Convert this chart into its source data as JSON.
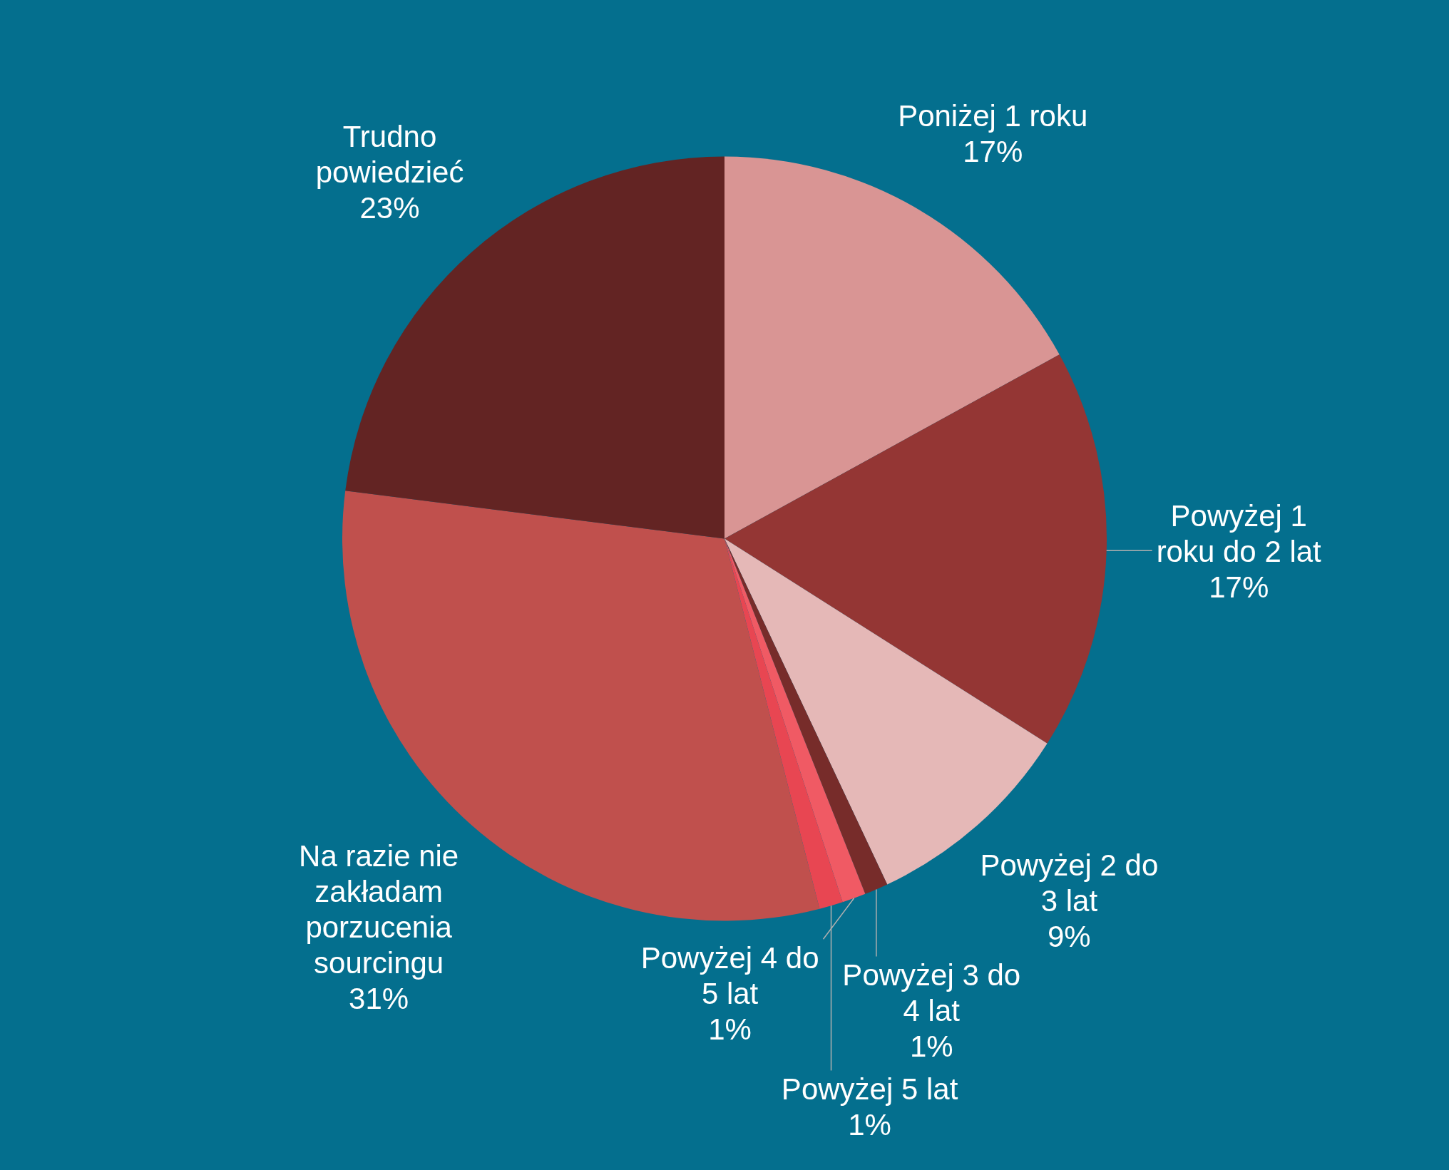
{
  "chart_data": {
    "type": "pie",
    "categories": [
      "Poniżej 1 roku",
      "Powyżej 1 roku do 2 lat",
      "Powyżej 2 do 3 lat",
      "Powyżej 3 do 4 lat",
      "Powyżej 4 do 5 lat",
      "Powyżej 5 lat",
      "Na razie nie zakładam porzucenia sourcingu",
      "Trudno powiedzieć"
    ],
    "values": [
      17,
      17,
      9,
      1,
      1,
      1,
      31,
      23
    ],
    "value_labels": [
      "17%",
      "17%",
      "9%",
      "1%",
      "1%",
      "1%",
      "31%",
      "23%"
    ],
    "colors": [
      "#d99594",
      "#943634",
      "#e5b8b7",
      "#772c2a",
      "#f05a64",
      "#e84652",
      "#c0504d",
      "#632423"
    ]
  }
}
